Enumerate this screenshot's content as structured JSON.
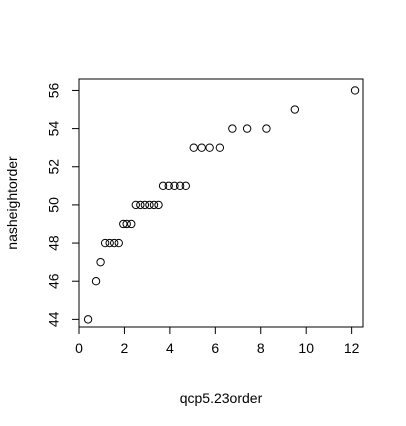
{
  "chart_data": {
    "type": "scatter",
    "xlabel": "qcp5.23order",
    "ylabel": "nasheightorder",
    "xlim": [
      0,
      12.5
    ],
    "ylim": [
      43.6,
      56.6
    ],
    "x_ticks": [
      0,
      2,
      4,
      6,
      8,
      10,
      12
    ],
    "y_ticks": [
      44,
      46,
      48,
      50,
      52,
      54,
      56
    ],
    "grid": false,
    "legend": "none",
    "marker": "open-circle",
    "colors": {
      "marker": "#000000",
      "axis": "#000000",
      "background": "#ffffff"
    },
    "points": [
      {
        "x": 0.4,
        "y": 44
      },
      {
        "x": 0.75,
        "y": 46
      },
      {
        "x": 0.95,
        "y": 47
      },
      {
        "x": 1.15,
        "y": 48
      },
      {
        "x": 1.35,
        "y": 48
      },
      {
        "x": 1.55,
        "y": 48
      },
      {
        "x": 1.75,
        "y": 48
      },
      {
        "x": 1.95,
        "y": 49
      },
      {
        "x": 2.1,
        "y": 49
      },
      {
        "x": 2.3,
        "y": 49
      },
      {
        "x": 2.5,
        "y": 50
      },
      {
        "x": 2.7,
        "y": 50
      },
      {
        "x": 2.9,
        "y": 50
      },
      {
        "x": 3.1,
        "y": 50
      },
      {
        "x": 3.3,
        "y": 50
      },
      {
        "x": 3.5,
        "y": 50
      },
      {
        "x": 3.7,
        "y": 51
      },
      {
        "x": 3.95,
        "y": 51
      },
      {
        "x": 4.2,
        "y": 51
      },
      {
        "x": 4.45,
        "y": 51
      },
      {
        "x": 4.7,
        "y": 51
      },
      {
        "x": 5.05,
        "y": 53
      },
      {
        "x": 5.4,
        "y": 53
      },
      {
        "x": 5.75,
        "y": 53
      },
      {
        "x": 6.2,
        "y": 53
      },
      {
        "x": 6.75,
        "y": 54
      },
      {
        "x": 7.4,
        "y": 54
      },
      {
        "x": 8.25,
        "y": 54
      },
      {
        "x": 9.5,
        "y": 55
      },
      {
        "x": 12.15,
        "y": 56
      }
    ]
  }
}
